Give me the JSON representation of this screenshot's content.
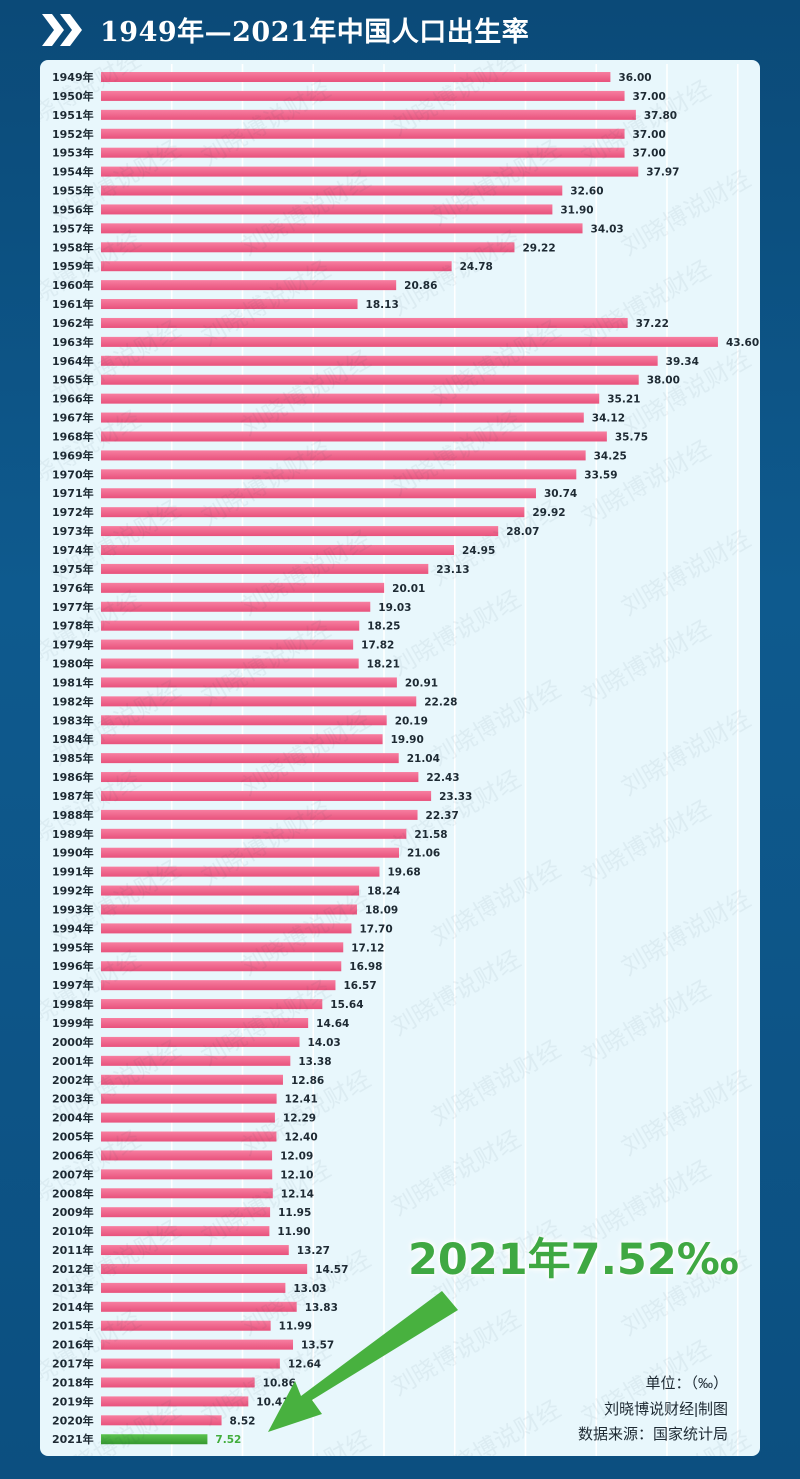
{
  "title": "1949年—2021年中国人口出生率",
  "watermark": "刘晓博说财经",
  "unit_label": "单位：（‰）",
  "credit": "刘晓博说财经|制图",
  "source": "数据来源：国家统计局",
  "callout": "2021年7.52‰",
  "colors": {
    "bar": "#f2668e",
    "highlight": "#42ad3c",
    "arrow": "#48b13f"
  },
  "chart_data": {
    "type": "bar",
    "orientation": "horizontal",
    "title": "1949年—2021年中国人口出生率",
    "unit": "‰",
    "xlim": [
      0,
      45
    ],
    "grid": true,
    "highlight_category": "2021年",
    "categories": [
      "1949年",
      "1950年",
      "1951年",
      "1952年",
      "1953年",
      "1954年",
      "1955年",
      "1956年",
      "1957年",
      "1958年",
      "1959年",
      "1960年",
      "1961年",
      "1962年",
      "1963年",
      "1964年",
      "1965年",
      "1966年",
      "1967年",
      "1968年",
      "1969年",
      "1970年",
      "1971年",
      "1972年",
      "1973年",
      "1974年",
      "1975年",
      "1976年",
      "1977年",
      "1978年",
      "1979年",
      "1980年",
      "1981年",
      "1982年",
      "1983年",
      "1984年",
      "1985年",
      "1986年",
      "1987年",
      "1988年",
      "1989年",
      "1990年",
      "1991年",
      "1992年",
      "1993年",
      "1994年",
      "1995年",
      "1996年",
      "1997年",
      "1998年",
      "1999年",
      "2000年",
      "2001年",
      "2002年",
      "2003年",
      "2004年",
      "2005年",
      "2006年",
      "2007年",
      "2008年",
      "2009年",
      "2010年",
      "2011年",
      "2012年",
      "2013年",
      "2014年",
      "2015年",
      "2016年",
      "2017年",
      "2018年",
      "2019年",
      "2020年",
      "2021年"
    ],
    "values": [
      36.0,
      37.0,
      37.8,
      37.0,
      37.0,
      37.97,
      32.6,
      31.9,
      34.03,
      29.22,
      24.78,
      20.86,
      18.13,
      37.22,
      43.6,
      39.34,
      38.0,
      35.21,
      34.12,
      35.75,
      34.25,
      33.59,
      30.74,
      29.92,
      28.07,
      24.95,
      23.13,
      20.01,
      19.03,
      18.25,
      17.82,
      18.21,
      20.91,
      22.28,
      20.19,
      19.9,
      21.04,
      22.43,
      23.33,
      22.37,
      21.58,
      21.06,
      19.68,
      18.24,
      18.09,
      17.7,
      17.12,
      16.98,
      16.57,
      15.64,
      14.64,
      14.03,
      13.38,
      12.86,
      12.41,
      12.29,
      12.4,
      12.09,
      12.1,
      12.14,
      11.95,
      11.9,
      13.27,
      14.57,
      13.03,
      13.83,
      11.99,
      13.57,
      12.64,
      10.86,
      10.41,
      8.52,
      7.52
    ]
  }
}
